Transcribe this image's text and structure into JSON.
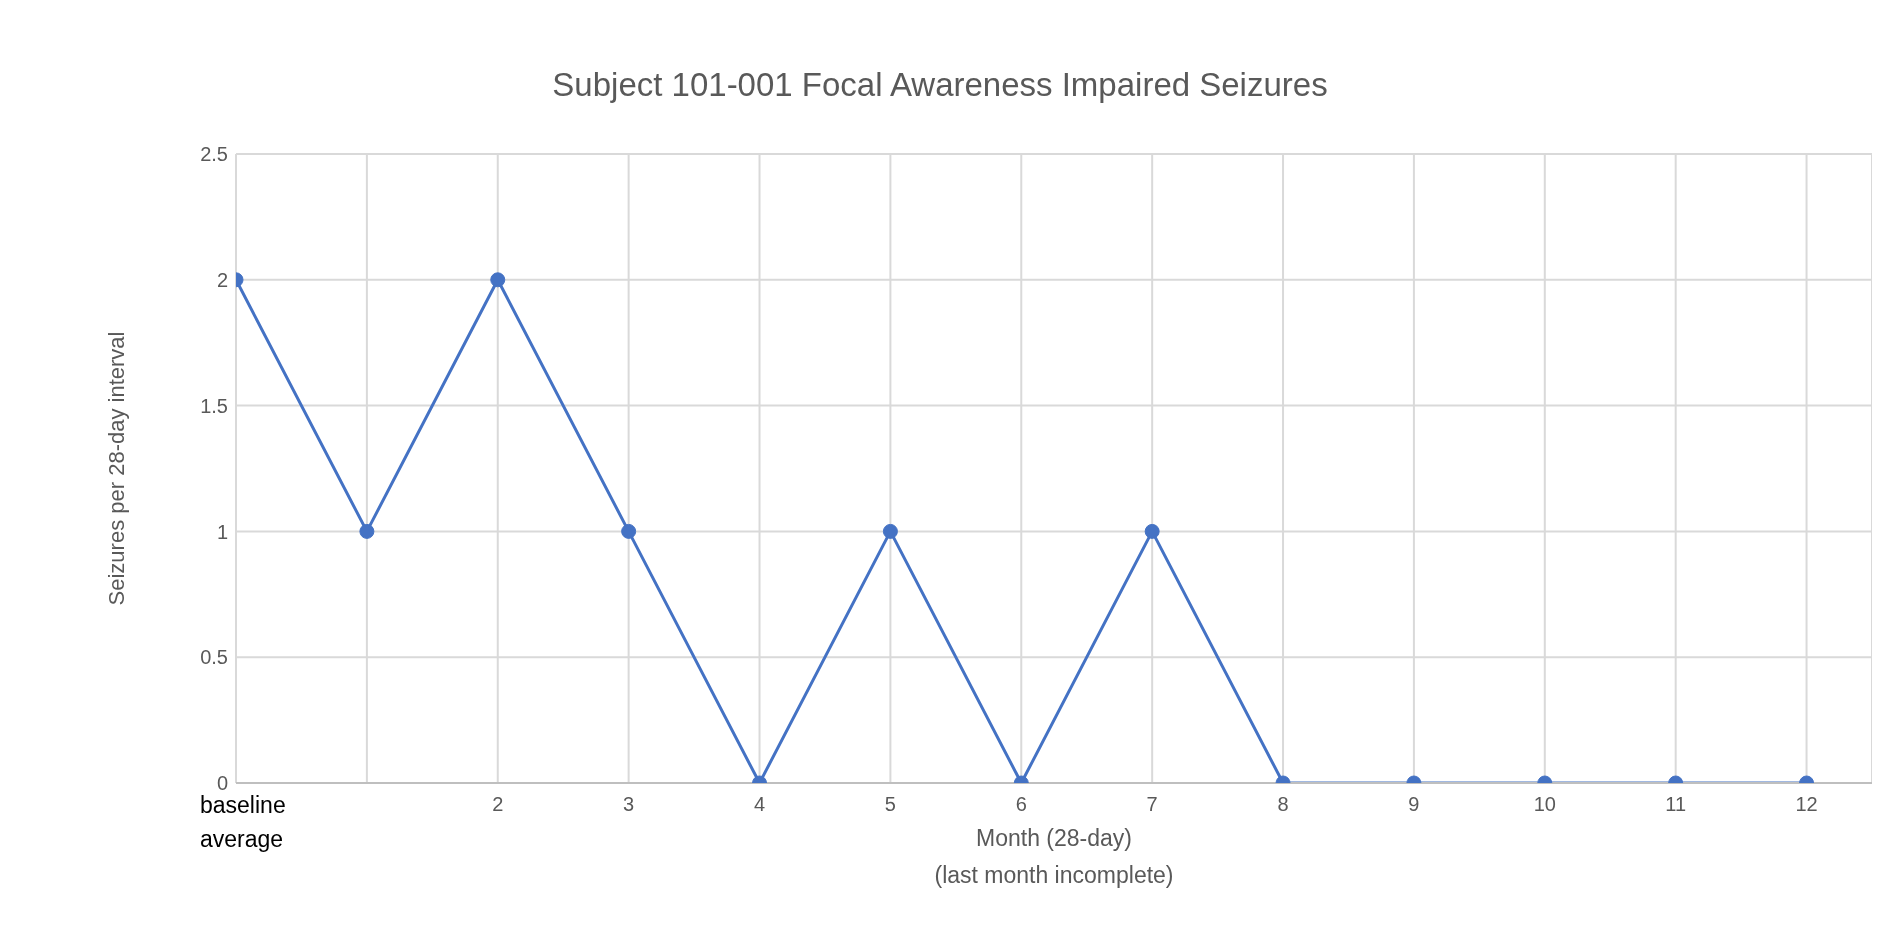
{
  "chart_data": {
    "type": "line",
    "title": "Subject 101-001 Focal Awareness Impaired Seizures",
    "xlabel": "Month (28-day)\n(last month incomplete)",
    "ylabel": "Seizures per 28-day interval",
    "categories": [
      "baseline average",
      null,
      "2",
      "3",
      "4",
      "5",
      "6",
      "7",
      "8",
      "9",
      "10",
      "11",
      "12"
    ],
    "series": [
      {
        "color": "#4472c4",
        "values": [
          2,
          1,
          2,
          1,
          0,
          1,
          0,
          1,
          0,
          0,
          0,
          0,
          0
        ]
      }
    ],
    "ylim": [
      0,
      2.5
    ],
    "yticks": [
      0,
      0.5,
      1,
      1.5,
      2,
      2.5
    ],
    "grid": true,
    "marker": "circle",
    "line_style": "solid",
    "legend": false
  }
}
